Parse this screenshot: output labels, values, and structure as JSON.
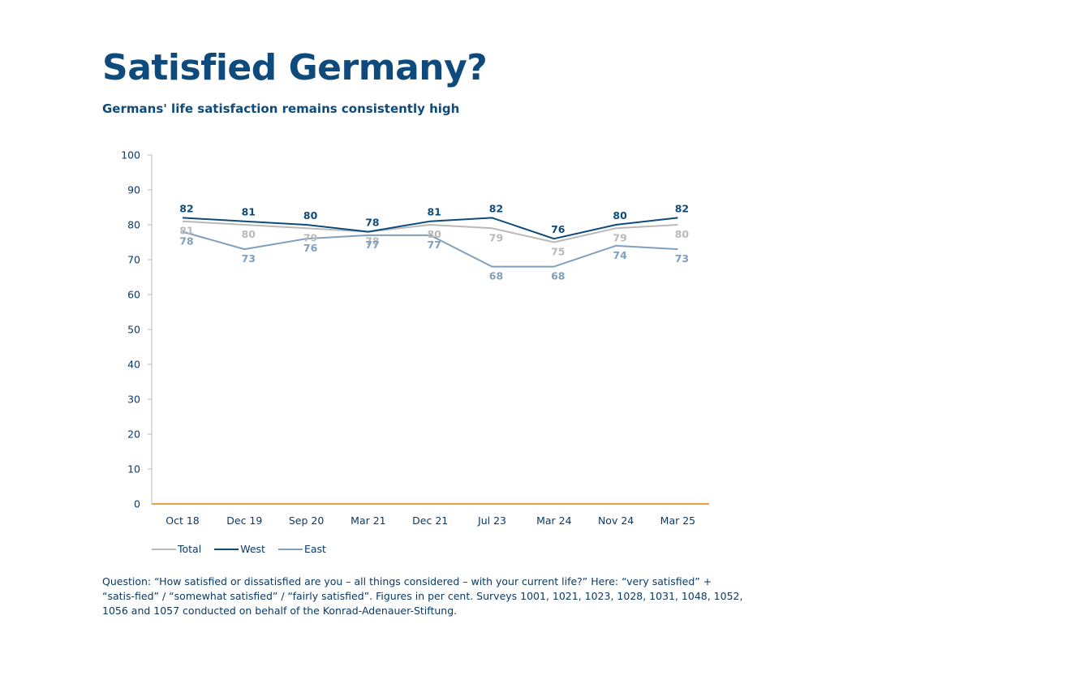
{
  "title": "Satisfied Germany?",
  "subtitle": "Germans' life satisfaction remains consistently high",
  "footnote": "Question: “How satisfied or dissatisfied are you – all things considered – with your current life?” Here: “very satisfied” + “satis-fied” / “somewhat satisfied” / “fairly satisfied”. Figures in per cent. Surveys 1001, 1021, 1023, 1028, 1031, 1048, 1052, 1056 and 1057 conducted on behalf of the Konrad-Adenauer-Stiftung.",
  "chart_data": {
    "type": "line",
    "categories": [
      "Oct 18",
      "Dec 19",
      "Sep 20",
      "Mar 21",
      "Dec 21",
      "Jul 23",
      "Mar 24",
      "Nov 24",
      "Mar 25"
    ],
    "ylim": [
      0,
      100
    ],
    "yticks": [
      0,
      10,
      20,
      30,
      40,
      50,
      60,
      70,
      80,
      90,
      100
    ],
    "grid": false,
    "legend_position": "bottom-left",
    "baseline_color": "#e8a33d",
    "series": [
      {
        "name": "Total",
        "color": "#b9b9b9",
        "label_offset": "below",
        "values": [
          81,
          80,
          79,
          78,
          80,
          79,
          75,
          79,
          80
        ]
      },
      {
        "name": "West",
        "color": "#0e4a7b",
        "label_offset": "above",
        "values": [
          82,
          81,
          80,
          78,
          81,
          82,
          76,
          80,
          82
        ]
      },
      {
        "name": "East",
        "color": "#7f9fbd",
        "label_offset": "below",
        "values": [
          78,
          73,
          76,
          77,
          77,
          68,
          68,
          74,
          73
        ]
      }
    ]
  }
}
